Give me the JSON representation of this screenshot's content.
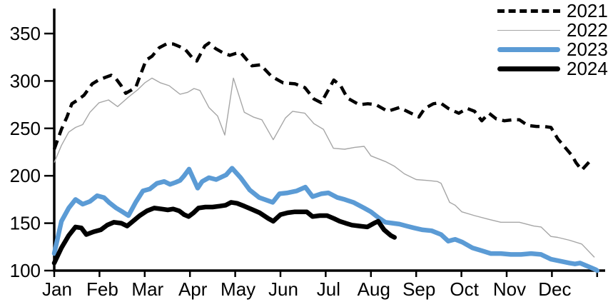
{
  "chart_data": {
    "type": "line",
    "title": "",
    "xlabel": "",
    "ylabel": "",
    "x_axis": {
      "tick_labels": [
        "Jan",
        "Feb",
        "Mar",
        "Apr",
        "May",
        "Jun",
        "Jul",
        "Aug",
        "Sep",
        "Oct",
        "Nov",
        "Dec"
      ],
      "range_months": [
        0,
        12
      ]
    },
    "y_axis": {
      "ticks": [
        100,
        150,
        200,
        250,
        300,
        350
      ],
      "range": [
        100,
        350
      ]
    },
    "grid": false,
    "legend": {
      "position": "top-right",
      "entries": [
        "2021",
        "2022",
        "2023",
        "2024"
      ]
    },
    "series": [
      {
        "name": "2021",
        "color": "#000000",
        "style": "dashed",
        "stroke_width": 4.5,
        "points": [
          [
            0,
            228
          ],
          [
            0.16,
            249
          ],
          [
            0.28,
            262
          ],
          [
            0.39,
            276
          ],
          [
            0.52,
            280
          ],
          [
            0.66,
            285
          ],
          [
            0.84,
            297
          ],
          [
            0.98,
            301
          ],
          [
            1.14,
            304
          ],
          [
            1.26,
            306
          ],
          [
            1.37,
            302
          ],
          [
            1.48,
            295
          ],
          [
            1.58,
            287
          ],
          [
            1.8,
            293
          ],
          [
            1.91,
            307
          ],
          [
            2.03,
            322
          ],
          [
            2.16,
            326
          ],
          [
            2.32,
            335
          ],
          [
            2.48,
            339
          ],
          [
            2.63,
            339
          ],
          [
            2.78,
            336
          ],
          [
            2.9,
            333
          ],
          [
            3.06,
            324
          ],
          [
            3.15,
            321
          ],
          [
            3.33,
            337
          ],
          [
            3.42,
            340
          ],
          [
            3.57,
            334
          ],
          [
            3.72,
            330
          ],
          [
            3.88,
            327
          ],
          [
            4.01,
            329
          ],
          [
            4.12,
            330
          ],
          [
            4.37,
            316
          ],
          [
            4.56,
            317
          ],
          [
            4.8,
            305
          ],
          [
            5.06,
            298
          ],
          [
            5.32,
            297
          ],
          [
            5.54,
            293
          ],
          [
            5.74,
            281
          ],
          [
            5.9,
            277
          ],
          [
            6.18,
            301
          ],
          [
            6.33,
            295
          ],
          [
            6.48,
            282
          ],
          [
            6.74,
            275
          ],
          [
            6.93,
            276
          ],
          [
            7.11,
            275
          ],
          [
            7.37,
            268
          ],
          [
            7.63,
            272
          ],
          [
            7.84,
            267
          ],
          [
            8.06,
            262
          ],
          [
            8.19,
            271
          ],
          [
            8.38,
            276
          ],
          [
            8.53,
            277
          ],
          [
            8.71,
            271
          ],
          [
            8.94,
            266
          ],
          [
            9.13,
            271
          ],
          [
            9.29,
            268
          ],
          [
            9.45,
            258
          ],
          [
            9.61,
            266
          ],
          [
            9.77,
            260
          ],
          [
            9.95,
            258
          ],
          [
            10.13,
            259
          ],
          [
            10.28,
            259
          ],
          [
            10.47,
            253
          ],
          [
            10.66,
            252
          ],
          [
            10.82,
            252
          ],
          [
            10.98,
            251
          ],
          [
            11.13,
            239
          ],
          [
            11.29,
            230
          ],
          [
            11.45,
            221
          ],
          [
            11.53,
            214
          ],
          [
            11.66,
            206
          ],
          [
            11.89,
            218
          ]
        ]
      },
      {
        "name": "2022",
        "color": "#a6a6a6",
        "style": "solid",
        "stroke_width": 1.4,
        "points": [
          [
            0,
            214
          ],
          [
            0.16,
            232
          ],
          [
            0.32,
            246
          ],
          [
            0.47,
            251
          ],
          [
            0.63,
            254
          ],
          [
            0.79,
            267
          ],
          [
            0.99,
            277
          ],
          [
            1.2,
            280
          ],
          [
            1.4,
            273
          ],
          [
            1.64,
            283
          ],
          [
            1.85,
            291
          ],
          [
            2.0,
            298
          ],
          [
            2.16,
            303
          ],
          [
            2.35,
            298
          ],
          [
            2.54,
            295
          ],
          [
            2.78,
            286
          ],
          [
            2.95,
            288
          ],
          [
            3.09,
            292
          ],
          [
            3.22,
            290
          ],
          [
            3.42,
            272
          ],
          [
            3.61,
            263
          ],
          [
            3.77,
            243
          ],
          [
            3.96,
            303
          ],
          [
            4.2,
            267
          ],
          [
            4.4,
            262
          ],
          [
            4.59,
            259
          ],
          [
            4.84,
            238
          ],
          [
            5.11,
            261
          ],
          [
            5.27,
            268
          ],
          [
            5.54,
            266
          ],
          [
            5.74,
            255
          ],
          [
            5.95,
            249
          ],
          [
            6.17,
            229
          ],
          [
            6.42,
            228
          ],
          [
            6.64,
            230
          ],
          [
            6.85,
            231
          ],
          [
            7.0,
            221
          ],
          [
            7.32,
            215
          ],
          [
            7.52,
            210
          ],
          [
            7.74,
            202
          ],
          [
            8.0,
            196
          ],
          [
            8.26,
            195
          ],
          [
            8.47,
            194
          ],
          [
            8.55,
            192
          ],
          [
            8.74,
            172
          ],
          [
            8.86,
            169
          ],
          [
            9.01,
            162
          ],
          [
            9.29,
            158
          ],
          [
            9.61,
            154
          ],
          [
            9.87,
            151
          ],
          [
            10.28,
            151
          ],
          [
            10.6,
            147
          ],
          [
            10.76,
            146
          ],
          [
            10.98,
            136
          ],
          [
            11.13,
            135
          ],
          [
            11.39,
            132
          ],
          [
            11.66,
            128
          ],
          [
            11.94,
            114
          ]
        ]
      },
      {
        "name": "2023",
        "color": "#5b9bd5",
        "style": "solid",
        "stroke_width": 6.5,
        "points": [
          [
            0,
            118
          ],
          [
            0.16,
            152
          ],
          [
            0.32,
            166
          ],
          [
            0.47,
            175
          ],
          [
            0.63,
            170
          ],
          [
            0.79,
            173
          ],
          [
            0.95,
            179
          ],
          [
            1.1,
            177
          ],
          [
            1.21,
            172
          ],
          [
            1.37,
            166
          ],
          [
            1.51,
            162
          ],
          [
            1.64,
            158
          ],
          [
            1.8,
            172
          ],
          [
            1.96,
            184
          ],
          [
            2.11,
            186
          ],
          [
            2.27,
            192
          ],
          [
            2.43,
            194
          ],
          [
            2.56,
            191
          ],
          [
            2.68,
            193
          ],
          [
            2.78,
            195
          ],
          [
            2.87,
            200
          ],
          [
            2.98,
            207
          ],
          [
            3.17,
            187
          ],
          [
            3.27,
            194
          ],
          [
            3.42,
            198
          ],
          [
            3.58,
            196
          ],
          [
            3.8,
            201
          ],
          [
            3.93,
            208
          ],
          [
            4.12,
            198
          ],
          [
            4.32,
            185
          ],
          [
            4.53,
            177
          ],
          [
            4.83,
            172
          ],
          [
            4.98,
            181
          ],
          [
            5.16,
            182
          ],
          [
            5.36,
            184
          ],
          [
            5.55,
            188
          ],
          [
            5.71,
            178
          ],
          [
            5.9,
            181
          ],
          [
            6.06,
            182
          ],
          [
            6.26,
            177
          ],
          [
            6.42,
            175
          ],
          [
            6.61,
            172
          ],
          [
            6.85,
            166
          ],
          [
            7.0,
            162
          ],
          [
            7.16,
            156
          ],
          [
            7.32,
            151
          ],
          [
            7.48,
            150
          ],
          [
            7.63,
            149
          ],
          [
            7.79,
            147
          ],
          [
            7.95,
            145
          ],
          [
            8.14,
            143
          ],
          [
            8.34,
            142
          ],
          [
            8.55,
            138
          ],
          [
            8.71,
            131
          ],
          [
            8.86,
            133
          ],
          [
            9.02,
            130
          ],
          [
            9.24,
            124
          ],
          [
            9.45,
            121
          ],
          [
            9.65,
            118
          ],
          [
            9.87,
            118
          ],
          [
            10.09,
            117
          ],
          [
            10.32,
            117
          ],
          [
            10.54,
            118
          ],
          [
            10.76,
            117
          ],
          [
            10.98,
            112
          ],
          [
            11.18,
            110
          ],
          [
            11.39,
            108
          ],
          [
            11.51,
            107
          ],
          [
            11.62,
            108
          ],
          [
            11.77,
            105
          ],
          [
            11.97,
            101
          ],
          [
            12.0,
            100
          ]
        ]
      },
      {
        "name": "2024",
        "color": "#000000",
        "style": "solid",
        "stroke_width": 6.5,
        "points": [
          [
            0,
            108
          ],
          [
            0.16,
            124
          ],
          [
            0.32,
            137
          ],
          [
            0.47,
            146
          ],
          [
            0.6,
            145
          ],
          [
            0.71,
            138
          ],
          [
            0.87,
            141
          ],
          [
            1.03,
            143
          ],
          [
            1.17,
            148
          ],
          [
            1.32,
            151
          ],
          [
            1.48,
            150
          ],
          [
            1.61,
            147
          ],
          [
            1.74,
            152
          ],
          [
            1.89,
            158
          ],
          [
            2.05,
            163
          ],
          [
            2.21,
            166
          ],
          [
            2.37,
            165
          ],
          [
            2.51,
            164
          ],
          [
            2.63,
            165
          ],
          [
            2.76,
            163
          ],
          [
            2.87,
            159
          ],
          [
            2.97,
            157
          ],
          [
            3.08,
            161
          ],
          [
            3.19,
            166
          ],
          [
            3.34,
            167
          ],
          [
            3.5,
            167
          ],
          [
            3.66,
            168
          ],
          [
            3.79,
            169
          ],
          [
            3.91,
            172
          ],
          [
            4.04,
            171
          ],
          [
            4.2,
            168
          ],
          [
            4.35,
            165
          ],
          [
            4.54,
            161
          ],
          [
            4.73,
            155
          ],
          [
            4.84,
            152
          ],
          [
            5.0,
            159
          ],
          [
            5.16,
            161
          ],
          [
            5.32,
            162
          ],
          [
            5.47,
            162
          ],
          [
            5.58,
            162
          ],
          [
            5.71,
            157
          ],
          [
            5.87,
            158
          ],
          [
            6.03,
            158
          ],
          [
            6.18,
            155
          ],
          [
            6.31,
            152
          ],
          [
            6.44,
            150
          ],
          [
            6.58,
            148
          ],
          [
            6.75,
            147
          ],
          [
            6.92,
            146
          ],
          [
            7.07,
            150
          ],
          [
            7.16,
            152
          ],
          [
            7.29,
            143
          ],
          [
            7.44,
            137
          ],
          [
            7.52,
            135
          ]
        ]
      }
    ]
  },
  "colors": {
    "background": "#ffffff",
    "axis": "#000000",
    "accent_blue": "#5b9bd5",
    "series_gray": "#a6a6a6"
  }
}
